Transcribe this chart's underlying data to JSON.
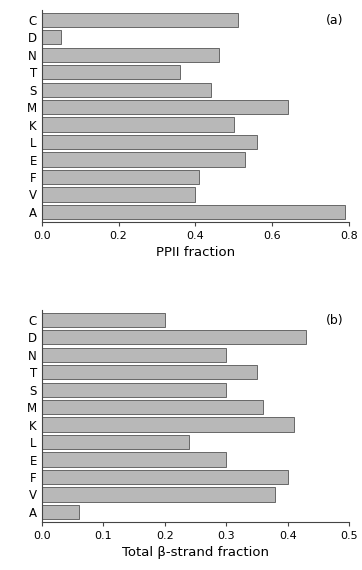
{
  "panel_a": {
    "labels": [
      "C",
      "D",
      "N",
      "T",
      "S",
      "M",
      "K",
      "L",
      "E",
      "F",
      "V",
      "A"
    ],
    "values": [
      0.51,
      0.05,
      0.46,
      0.36,
      0.44,
      0.64,
      0.5,
      0.56,
      0.53,
      0.41,
      0.4,
      0.79
    ],
    "xlabel": "PPII fraction",
    "xlim": [
      0.0,
      0.8
    ],
    "xticks": [
      0.0,
      0.2,
      0.4,
      0.6,
      0.8
    ],
    "label": "(a)"
  },
  "panel_b": {
    "labels": [
      "C",
      "D",
      "N",
      "T",
      "S",
      "M",
      "K",
      "L",
      "E",
      "F",
      "V",
      "A"
    ],
    "values": [
      0.2,
      0.43,
      0.3,
      0.35,
      0.3,
      0.36,
      0.41,
      0.24,
      0.3,
      0.4,
      0.38,
      0.06
    ],
    "xlabel": "Total β-strand fraction",
    "xlim": [
      0.0,
      0.5
    ],
    "xticks": [
      0.0,
      0.1,
      0.2,
      0.3,
      0.4,
      0.5
    ],
    "label": "(b)"
  },
  "bar_color": "#b8b8b8",
  "bar_edgecolor": "#555555",
  "background_color": "#ffffff"
}
